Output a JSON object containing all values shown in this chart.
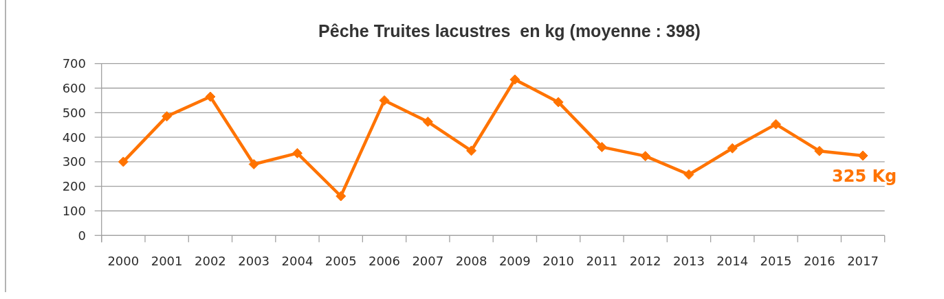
{
  "chart_data": {
    "type": "line",
    "title": "Pêche Truites lacustres  en kg (moyenne : 398)",
    "categories": [
      "2000",
      "2001",
      "2002",
      "2003",
      "2004",
      "2005",
      "2006",
      "2007",
      "2008",
      "2009",
      "2010",
      "2011",
      "2012",
      "2013",
      "2014",
      "2015",
      "2016",
      "2017"
    ],
    "series": [
      {
        "color": "#ff7300",
        "values": [
          300,
          485,
          565,
          290,
          335,
          160,
          550,
          463,
          345,
          635,
          543,
          360,
          323,
          248,
          355,
          453,
          344,
          325
        ],
        "value_labels": [
          null,
          null,
          null,
          null,
          null,
          null,
          null,
          null,
          null,
          null,
          null,
          null,
          null,
          null,
          null,
          null,
          null,
          "325 Kg"
        ]
      }
    ],
    "ylim": [
      0,
      700
    ],
    "yticks": [
      0,
      100,
      200,
      300,
      400,
      500,
      600,
      700
    ],
    "grid": "y",
    "marker": "diamond",
    "line_style": "solid"
  }
}
